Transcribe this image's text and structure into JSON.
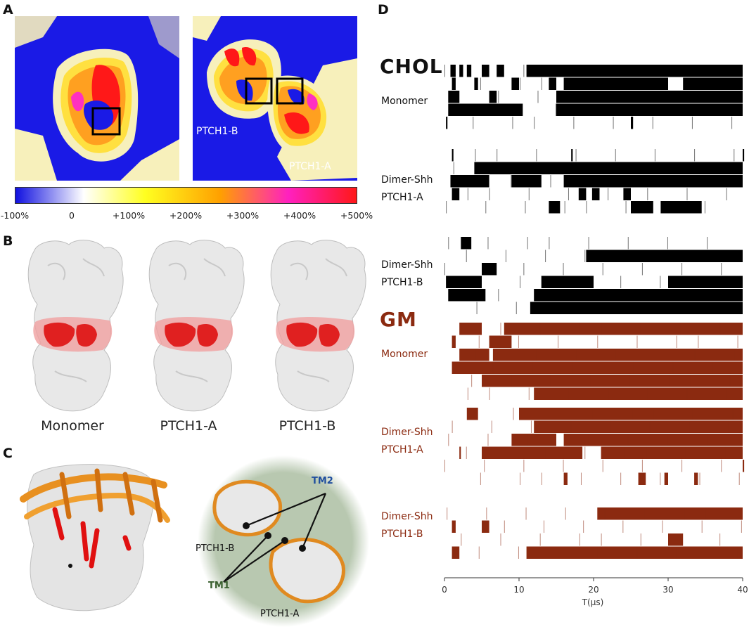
{
  "panels": {
    "a": "A",
    "b": "B",
    "c": "C",
    "d": "D"
  },
  "panel_a": {
    "map_label_1": "PTCH1-B",
    "map_label_2": "PTCH1-A",
    "colorbar_ticks": [
      "-100%",
      "0",
      "+100%",
      "+200%",
      "+300%",
      "+400%",
      "+500%"
    ]
  },
  "panel_b": {
    "labels": [
      "Monomer",
      "PTCH1-A",
      "PTCH1-B"
    ]
  },
  "panel_c": {
    "tm2": "TM2",
    "tm1": "TM1",
    "ptch1_b": "PTCH1-B",
    "ptch1_a": "PTCH1-A"
  },
  "panel_d": {
    "chol_title": "CHOL",
    "gm_title": "GM",
    "chol_groups": [
      {
        "line1": "Monomer",
        "line2": ""
      },
      {
        "line1": "Dimer-Shh",
        "line2": "PTCH1-A"
      },
      {
        "line1": "Dimer-Shh",
        "line2": "PTCH1-B"
      }
    ],
    "gm_groups": [
      {
        "line1": "Monomer",
        "line2": ""
      },
      {
        "line1": "Dimer-Shh",
        "line2": "PTCH1-A"
      },
      {
        "line1": "Dimer-Shh",
        "line2": "PTCH1-B"
      }
    ],
    "x_ticks": [
      "0",
      "10",
      "20",
      "30",
      "40"
    ],
    "x_label": "T(μs)",
    "colors": {
      "chol": "#000000",
      "gm": "#8b2a10"
    }
  },
  "chart_data": {
    "type": "bar",
    "xlabel": "T(μs)",
    "xlim": [
      0,
      40
    ],
    "series": [
      {
        "name": "CHOL Monomer",
        "rows": [
          [
            [
              0.8,
              1.5
            ],
            [
              2,
              2.5
            ],
            [
              3,
              3.6
            ],
            [
              5,
              6
            ],
            [
              7,
              8
            ],
            [
              11,
              40
            ]
          ],
          [
            [
              1,
              1.5
            ],
            [
              4,
              4.5
            ],
            [
              9,
              10
            ],
            [
              14,
              15
            ],
            [
              16,
              30
            ],
            [
              32,
              40
            ]
          ],
          [
            [
              0.5,
              2
            ],
            [
              6,
              7
            ],
            [
              15,
              40
            ]
          ],
          [
            [
              0.5,
              10.5
            ],
            [
              15,
              40
            ]
          ],
          [
            [
              0.2,
              0.4
            ],
            [
              25,
              25.3
            ]
          ]
        ]
      },
      {
        "name": "Dimer-Shh PTCH1-A",
        "rows": [
          [
            [
              1,
              1.2
            ],
            [
              17,
              17.2
            ],
            [
              40,
              40.2
            ]
          ],
          [
            [
              4,
              40
            ]
          ],
          [
            [
              0.8,
              6
            ],
            [
              9,
              13
            ],
            [
              16,
              40
            ]
          ],
          [
            [
              1,
              2
            ],
            [
              18,
              19
            ],
            [
              19.8,
              20.8
            ],
            [
              24,
              25
            ]
          ],
          [
            [
              14,
              15.5
            ],
            [
              25,
              28
            ],
            [
              29,
              34.5
            ]
          ]
        ]
      },
      {
        "name": "Dimer-Shh PTCH1-B",
        "rows": [
          [
            [
              2.2,
              3.6
            ]
          ],
          [
            [
              19,
              40
            ]
          ],
          [
            [
              5,
              7
            ]
          ],
          [
            [
              0.2,
              5
            ],
            [
              13,
              20
            ],
            [
              30,
              40
            ]
          ],
          [
            [
              0.5,
              5.5
            ],
            [
              12,
              40
            ]
          ],
          [
            [
              11.5,
              40
            ]
          ]
        ]
      },
      {
        "name": "GM Monomer",
        "rows": [
          [
            [
              2,
              5
            ],
            [
              8,
              40
            ]
          ],
          [
            [
              1,
              1.5
            ],
            [
              6,
              9
            ]
          ],
          [
            [
              2,
              6
            ],
            [
              6.5,
              40
            ]
          ],
          [
            [
              1,
              40
            ]
          ],
          [
            [
              5,
              40
            ]
          ],
          [
            [
              12,
              40
            ]
          ]
        ]
      },
      {
        "name": "GM Dimer-Shh PTCH1-A",
        "rows": [
          [
            [
              3,
              4.5
            ],
            [
              10,
              40
            ]
          ],
          [
            [
              12,
              40
            ]
          ],
          [
            [
              9,
              15
            ],
            [
              16,
              40
            ]
          ],
          [
            [
              2,
              2.2
            ],
            [
              5,
              18.5
            ],
            [
              21,
              40
            ]
          ],
          [
            [
              40,
              40.2
            ]
          ],
          [
            [
              16,
              16.5
            ],
            [
              26,
              27
            ],
            [
              29.5,
              30
            ],
            [
              33.5,
              34
            ]
          ]
        ]
      },
      {
        "name": "GM Dimer-Shh PTCH1-B",
        "rows": [
          [
            [
              20.5,
              40
            ]
          ],
          [
            [
              1,
              1.5
            ],
            [
              5,
              6
            ]
          ],
          [
            [
              30,
              32
            ]
          ],
          [
            [
              1,
              2
            ],
            [
              11,
              40
            ]
          ]
        ]
      }
    ]
  }
}
